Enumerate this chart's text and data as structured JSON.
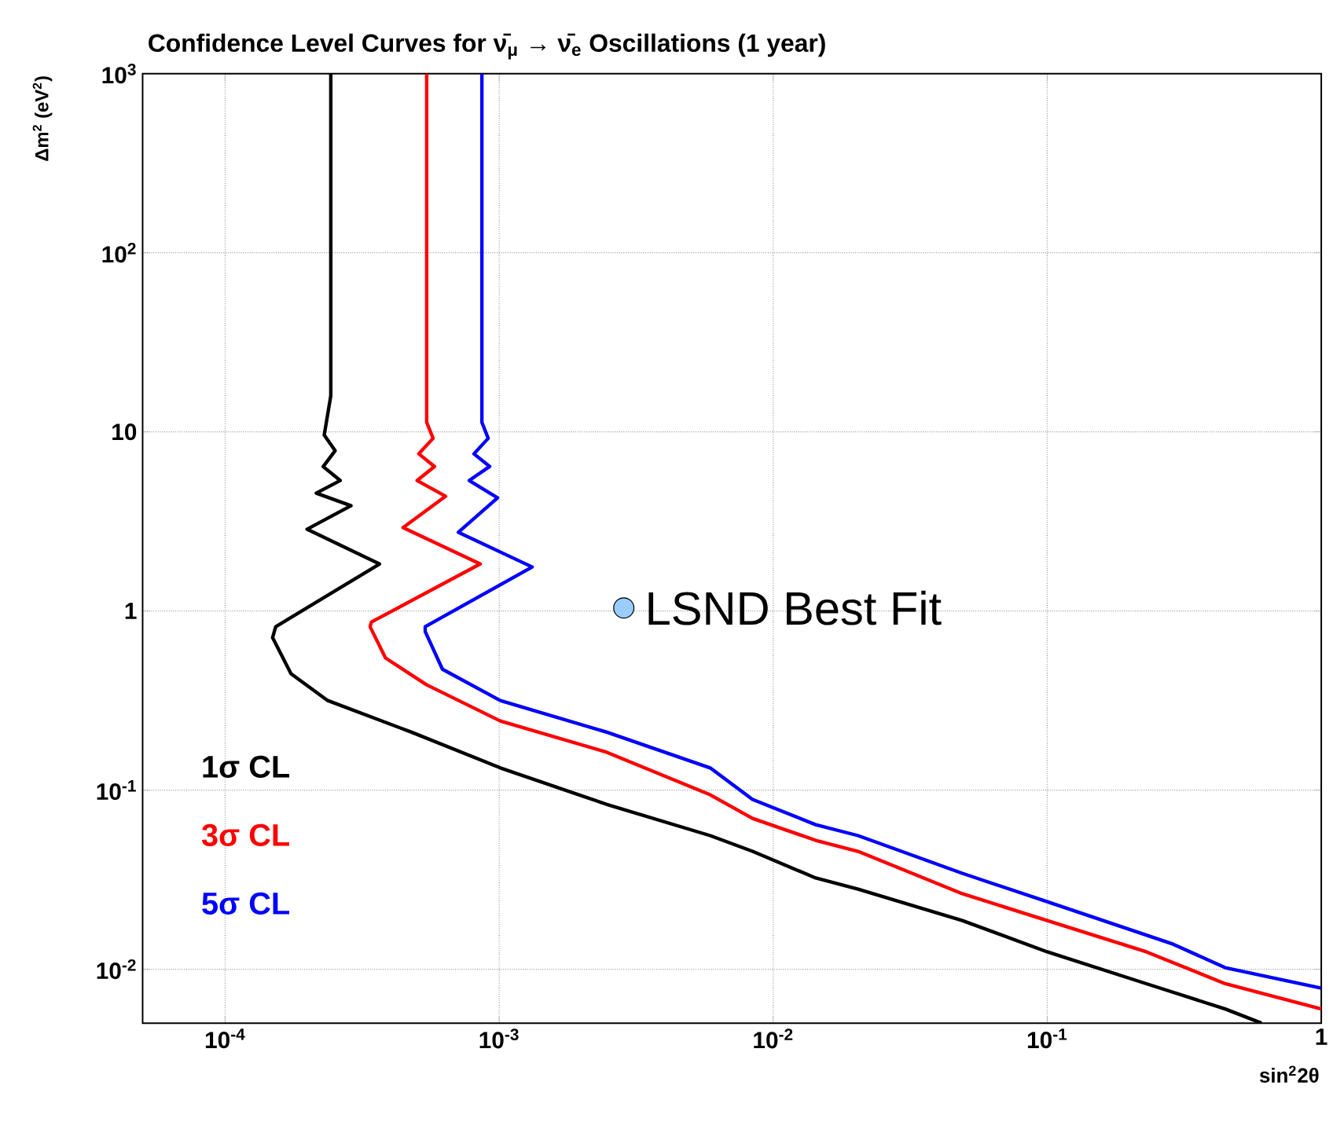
{
  "chart_data": {
    "type": "line",
    "title": "Confidence Level Curves for ν̄$_{μ}$ → ν̄$_{e}$ Oscillations (1 year)",
    "xlabel": "sin$^{2}$2θ",
    "ylabel": "Δm$^{2}$ (eV$^{2}$)",
    "log": "xy",
    "grid": true,
    "line_style": "solid",
    "marker": "none",
    "xlim": [
      5e-05,
      1
    ],
    "ylim": [
      0.005,
      1000
    ],
    "xticks": [
      {
        "value": 0.0001,
        "label": "10$^{-4}$"
      },
      {
        "value": 0.001,
        "label": "10$^{-3}$"
      },
      {
        "value": 0.01,
        "label": "10$^{-2}$"
      },
      {
        "value": 0.1,
        "label": "10$^{-1}$"
      },
      1
    ],
    "yticks": [
      {
        "value": 0.01,
        "label": "10$^{-2}$"
      },
      {
        "value": 0.1,
        "label": "10$^{-1}$"
      },
      1,
      10,
      {
        "value": 100,
        "label": "10$^{2}$"
      },
      {
        "value": 1000,
        "label": "10$^{3}$"
      }
    ],
    "series": [
      {
        "name": "1σ CL",
        "color": "#000000",
        "x": [
          0.000243,
          0.000243,
          0.00023,
          0.000252,
          0.000228,
          0.000263,
          0.000215,
          0.000288,
          0.000199,
          0.000366,
          0.000153,
          0.000149,
          0.000174,
          0.000237,
          0.000477,
          0.00101,
          0.00246,
          0.00589,
          0.00841,
          0.0143,
          0.0204,
          0.049,
          0.1,
          0.23,
          0.446,
          0.605
        ],
        "values": [
          1000,
          15.9,
          9.6,
          7.85,
          6.4,
          5.35,
          4.55,
          3.87,
          2.86,
          1.83,
          0.817,
          0.71,
          0.446,
          0.316,
          0.211,
          0.133,
          0.0834,
          0.0557,
          0.0455,
          0.0323,
          0.028,
          0.0187,
          0.0125,
          0.0083,
          0.006,
          0.005
        ]
      },
      {
        "name": "3σ CL",
        "color": "#ff0000",
        "x": [
          0.000544,
          0.000544,
          0.000574,
          0.000509,
          0.000581,
          0.000502,
          0.000638,
          0.000446,
          0.000853,
          0.000342,
          0.000338,
          0.000385,
          0.000544,
          0.00101,
          0.00246,
          0.00589,
          0.00841,
          0.0143,
          0.0204,
          0.049,
          0.1,
          0.23,
          0.446,
          1
        ],
        "values": [
          1000,
          11.3,
          9.2,
          7.54,
          6.41,
          5.35,
          4.37,
          2.92,
          1.83,
          0.868,
          0.817,
          0.546,
          0.387,
          0.243,
          0.163,
          0.0941,
          0.0695,
          0.0524,
          0.0455,
          0.0264,
          0.0187,
          0.0125,
          0.0083,
          0.006
        ]
      },
      {
        "name": "5σ CL",
        "color": "#0000ff",
        "x": [
          0.000865,
          0.000865,
          0.000912,
          0.000809,
          0.000924,
          0.000778,
          0.000987,
          0.00071,
          0.00132,
          0.000537,
          0.000537,
          0.000621,
          0.00101,
          0.00246,
          0.00589,
          0.00841,
          0.0143,
          0.0204,
          0.049,
          0.1,
          0.288,
          0.446,
          1
        ],
        "values": [
          1000,
          11.3,
          9.2,
          7.54,
          6.41,
          5.35,
          4.28,
          2.75,
          1.76,
          0.817,
          0.769,
          0.473,
          0.316,
          0.211,
          0.133,
          0.0886,
          0.0641,
          0.0557,
          0.0343,
          0.0238,
          0.0138,
          0.0102,
          0.00785
        ]
      },
      {
        "name": "LSND Best Fit",
        "type": "scatter",
        "marker": "circle",
        "color": "#99ccff",
        "x": [
          0.00285
        ],
        "values": [
          1.04
        ]
      }
    ]
  }
}
